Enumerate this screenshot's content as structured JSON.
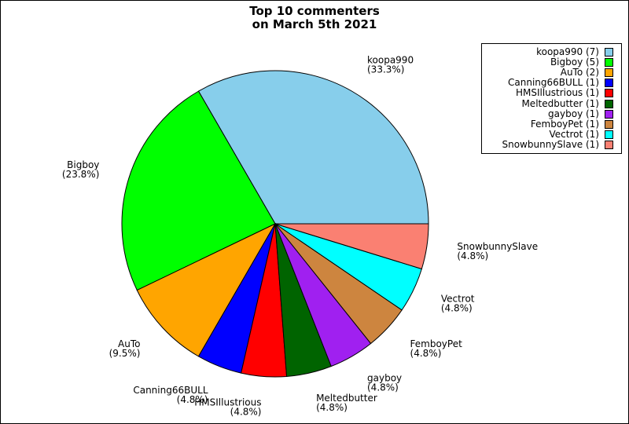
{
  "chart_data": {
    "type": "pie",
    "title": [
      "Top 10 commenters",
      "on March 5th 2021"
    ],
    "legend_position": "top-right",
    "slices": [
      {
        "label": "koopa990",
        "value": 7,
        "percent": "33.3%",
        "legend": "koopa990 (7)",
        "color": "#87ceeb"
      },
      {
        "label": "Bigboy",
        "value": 5,
        "percent": "23.8%",
        "legend": "Bigboy (5)",
        "color": "#00ff00"
      },
      {
        "label": "AuTo",
        "value": 2,
        "percent": "9.5%",
        "legend": "AuTo (2)",
        "color": "#ffa500"
      },
      {
        "label": "Canning66BULL",
        "value": 1,
        "percent": "4.8%",
        "legend": "Canning66BULL (1)",
        "color": "#0000ff"
      },
      {
        "label": "HMSIllustrious",
        "value": 1,
        "percent": "4.8%",
        "legend": "HMSIllustrious (1)",
        "color": "#ff0000"
      },
      {
        "label": "Meltedbutter",
        "value": 1,
        "percent": "4.8%",
        "legend": "Meltedbutter (1)",
        "color": "#006400"
      },
      {
        "label": "gayboy",
        "value": 1,
        "percent": "4.8%",
        "legend": "gayboy (1)",
        "color": "#a020f0"
      },
      {
        "label": "FemboyPet",
        "value": 1,
        "percent": "4.8%",
        "legend": "FemboyPet (1)",
        "color": "#cd853f"
      },
      {
        "label": "Vectrot",
        "value": 1,
        "percent": "4.8%",
        "legend": "Vectrot (1)",
        "color": "#00ffff"
      },
      {
        "label": "SnowbunnySlave",
        "value": 1,
        "percent": "4.8%",
        "legend": "SnowbunnySlave (1)",
        "color": "#fa8072"
      }
    ]
  }
}
